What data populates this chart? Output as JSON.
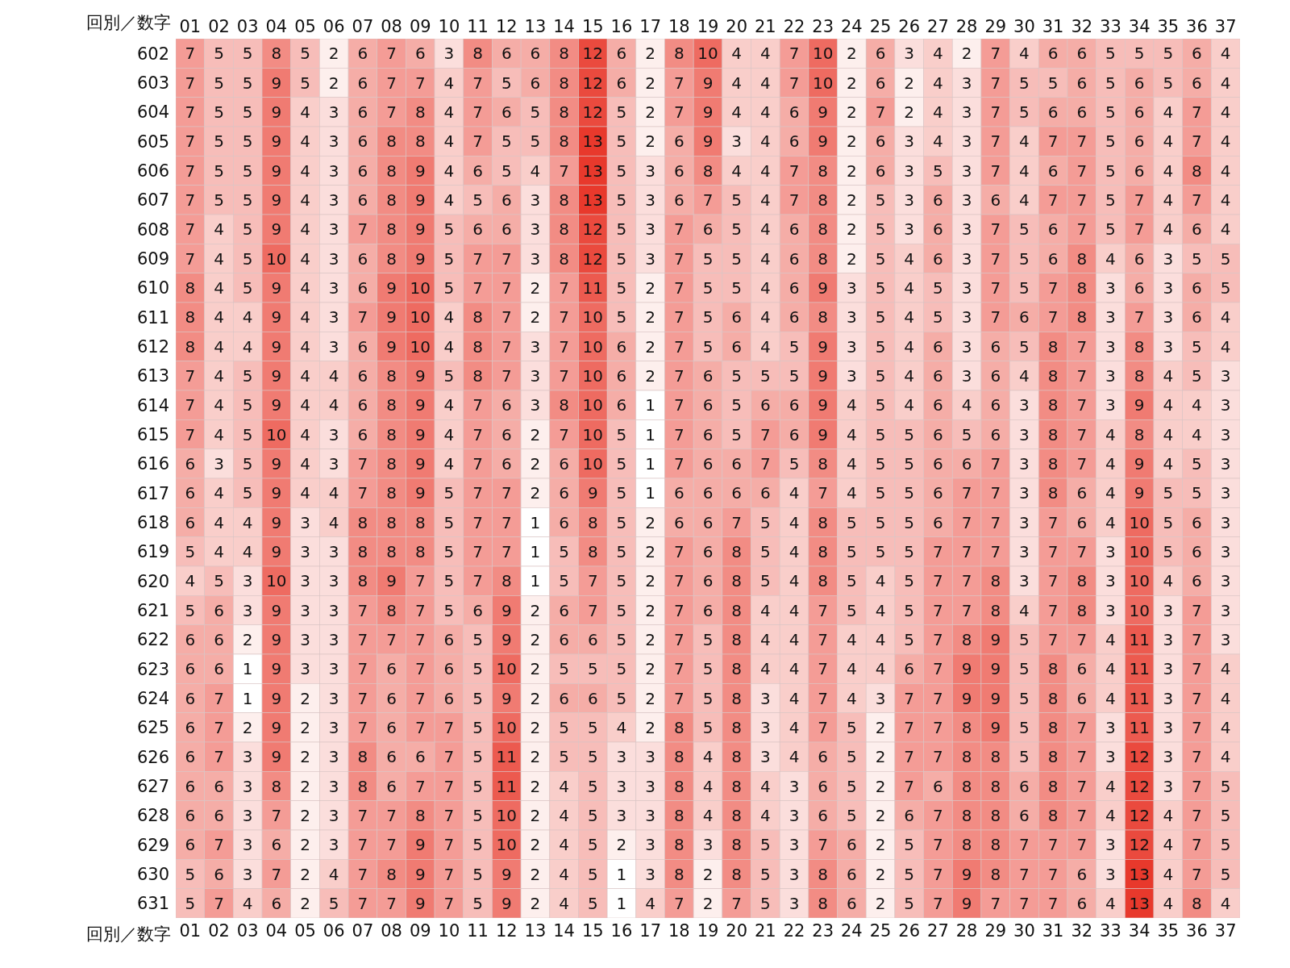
{
  "chart_data": {
    "type": "heatmap",
    "xlabel": "回別／数字",
    "color": "#e8392c",
    "data_labels": true,
    "categories": [
      "01",
      "02",
      "03",
      "04",
      "05",
      "06",
      "07",
      "08",
      "09",
      "10",
      "11",
      "12",
      "13",
      "14",
      "15",
      "16",
      "17",
      "18",
      "19",
      "20",
      "21",
      "22",
      "23",
      "24",
      "25",
      "26",
      "27",
      "28",
      "29",
      "30",
      "31",
      "32",
      "33",
      "34",
      "35",
      "36",
      "37"
    ],
    "y_categories": [
      "602",
      "603",
      "604",
      "605",
      "606",
      "607",
      "608",
      "609",
      "610",
      "611",
      "612",
      "613",
      "614",
      "615",
      "616",
      "617",
      "618",
      "619",
      "620",
      "621",
      "622",
      "623",
      "624",
      "625",
      "626",
      "627",
      "628",
      "629",
      "630",
      "631"
    ],
    "cells": [
      [
        7,
        5,
        5,
        8,
        5,
        2,
        6,
        7,
        6,
        3,
        8,
        6,
        6,
        8,
        12,
        6,
        2,
        8,
        10,
        4,
        4,
        7,
        10,
        2,
        6,
        3,
        4,
        2,
        7,
        4,
        6,
        6,
        5,
        5,
        5,
        6,
        4
      ],
      [
        7,
        5,
        5,
        9,
        5,
        2,
        6,
        7,
        7,
        4,
        7,
        5,
        6,
        8,
        12,
        6,
        2,
        7,
        9,
        4,
        4,
        7,
        10,
        2,
        6,
        2,
        4,
        3,
        7,
        5,
        5,
        6,
        5,
        6,
        5,
        6,
        4
      ],
      [
        7,
        5,
        5,
        9,
        4,
        3,
        6,
        7,
        8,
        4,
        7,
        6,
        5,
        8,
        12,
        5,
        2,
        7,
        9,
        4,
        4,
        6,
        9,
        2,
        7,
        2,
        4,
        3,
        7,
        5,
        6,
        6,
        5,
        6,
        4,
        7,
        4
      ],
      [
        7,
        5,
        5,
        9,
        4,
        3,
        6,
        8,
        8,
        4,
        7,
        5,
        5,
        8,
        13,
        5,
        2,
        6,
        9,
        3,
        4,
        6,
        9,
        2,
        6,
        3,
        4,
        3,
        7,
        4,
        7,
        7,
        5,
        6,
        4,
        7,
        4
      ],
      [
        7,
        5,
        5,
        9,
        4,
        3,
        6,
        8,
        9,
        4,
        6,
        5,
        4,
        7,
        13,
        5,
        3,
        6,
        8,
        4,
        4,
        7,
        8,
        2,
        6,
        3,
        5,
        3,
        7,
        4,
        6,
        7,
        5,
        6,
        4,
        8,
        4
      ],
      [
        7,
        5,
        5,
        9,
        4,
        3,
        6,
        8,
        9,
        4,
        5,
        6,
        3,
        8,
        13,
        5,
        3,
        6,
        7,
        5,
        4,
        7,
        8,
        2,
        5,
        3,
        6,
        3,
        6,
        4,
        7,
        7,
        5,
        7,
        4,
        7,
        4
      ],
      [
        7,
        4,
        5,
        9,
        4,
        3,
        7,
        8,
        9,
        5,
        6,
        6,
        3,
        8,
        12,
        5,
        3,
        7,
        6,
        5,
        4,
        6,
        8,
        2,
        5,
        3,
        6,
        3,
        7,
        5,
        6,
        7,
        5,
        7,
        4,
        6,
        4
      ],
      [
        7,
        4,
        5,
        10,
        4,
        3,
        6,
        8,
        9,
        5,
        7,
        7,
        3,
        8,
        12,
        5,
        3,
        7,
        5,
        5,
        4,
        6,
        8,
        2,
        5,
        4,
        6,
        3,
        7,
        5,
        6,
        8,
        4,
        6,
        3,
        5,
        5
      ],
      [
        8,
        4,
        5,
        9,
        4,
        3,
        6,
        9,
        10,
        5,
        7,
        7,
        2,
        7,
        11,
        5,
        2,
        7,
        5,
        5,
        4,
        6,
        9,
        3,
        5,
        4,
        5,
        3,
        7,
        5,
        7,
        8,
        3,
        6,
        3,
        6,
        5
      ],
      [
        8,
        4,
        4,
        9,
        4,
        3,
        7,
        9,
        10,
        4,
        8,
        7,
        2,
        7,
        10,
        5,
        2,
        7,
        5,
        6,
        4,
        6,
        8,
        3,
        5,
        4,
        5,
        3,
        7,
        6,
        7,
        8,
        3,
        7,
        3,
        6,
        4
      ],
      [
        8,
        4,
        4,
        9,
        4,
        3,
        6,
        9,
        10,
        4,
        8,
        7,
        3,
        7,
        10,
        6,
        2,
        7,
        5,
        6,
        4,
        5,
        9,
        3,
        5,
        4,
        6,
        3,
        6,
        5,
        8,
        7,
        3,
        8,
        3,
        5,
        4
      ],
      [
        7,
        4,
        5,
        9,
        4,
        4,
        6,
        8,
        9,
        5,
        8,
        7,
        3,
        7,
        10,
        6,
        2,
        7,
        6,
        5,
        5,
        5,
        9,
        3,
        5,
        4,
        6,
        3,
        6,
        4,
        8,
        7,
        3,
        8,
        4,
        5,
        3
      ],
      [
        7,
        4,
        5,
        9,
        4,
        4,
        6,
        8,
        9,
        4,
        7,
        6,
        3,
        8,
        10,
        6,
        1,
        7,
        6,
        5,
        6,
        6,
        9,
        4,
        5,
        4,
        6,
        4,
        6,
        3,
        8,
        7,
        3,
        9,
        4,
        4,
        3
      ],
      [
        7,
        4,
        5,
        10,
        4,
        3,
        6,
        8,
        9,
        4,
        7,
        6,
        2,
        7,
        10,
        5,
        1,
        7,
        6,
        5,
        7,
        6,
        9,
        4,
        5,
        5,
        6,
        5,
        6,
        3,
        8,
        7,
        4,
        8,
        4,
        4,
        3
      ],
      [
        6,
        3,
        5,
        9,
        4,
        3,
        7,
        8,
        9,
        4,
        7,
        6,
        2,
        6,
        10,
        5,
        1,
        7,
        6,
        6,
        7,
        5,
        8,
        4,
        5,
        5,
        6,
        6,
        7,
        3,
        8,
        7,
        4,
        9,
        4,
        5,
        3
      ],
      [
        6,
        4,
        5,
        9,
        4,
        4,
        7,
        8,
        9,
        5,
        7,
        7,
        2,
        6,
        9,
        5,
        1,
        6,
        6,
        6,
        6,
        4,
        7,
        4,
        5,
        5,
        6,
        7,
        7,
        3,
        8,
        6,
        4,
        9,
        5,
        5,
        3
      ],
      [
        6,
        4,
        4,
        9,
        3,
        4,
        8,
        8,
        8,
        5,
        7,
        7,
        1,
        6,
        8,
        5,
        2,
        6,
        6,
        7,
        5,
        4,
        8,
        5,
        5,
        5,
        6,
        7,
        7,
        3,
        7,
        6,
        4,
        10,
        5,
        6,
        3
      ],
      [
        5,
        4,
        4,
        9,
        3,
        3,
        8,
        8,
        8,
        5,
        7,
        7,
        1,
        5,
        8,
        5,
        2,
        7,
        6,
        8,
        5,
        4,
        8,
        5,
        5,
        5,
        7,
        7,
        7,
        3,
        7,
        7,
        3,
        10,
        5,
        6,
        3
      ],
      [
        4,
        5,
        3,
        10,
        3,
        3,
        8,
        9,
        7,
        5,
        7,
        8,
        1,
        5,
        7,
        5,
        2,
        7,
        6,
        8,
        5,
        4,
        8,
        5,
        4,
        5,
        7,
        7,
        8,
        3,
        7,
        8,
        3,
        10,
        4,
        6,
        3
      ],
      [
        5,
        6,
        3,
        9,
        3,
        3,
        7,
        8,
        7,
        5,
        6,
        9,
        2,
        6,
        7,
        5,
        2,
        7,
        6,
        8,
        4,
        4,
        7,
        5,
        4,
        5,
        7,
        7,
        8,
        4,
        7,
        8,
        3,
        10,
        3,
        7,
        3
      ],
      [
        6,
        6,
        2,
        9,
        3,
        3,
        7,
        7,
        7,
        6,
        5,
        9,
        2,
        6,
        6,
        5,
        2,
        7,
        5,
        8,
        4,
        4,
        7,
        4,
        4,
        5,
        7,
        8,
        9,
        5,
        7,
        7,
        4,
        11,
        3,
        7,
        3
      ],
      [
        6,
        6,
        1,
        9,
        3,
        3,
        7,
        6,
        7,
        6,
        5,
        10,
        2,
        5,
        5,
        5,
        2,
        7,
        5,
        8,
        4,
        4,
        7,
        4,
        4,
        6,
        7,
        9,
        9,
        5,
        8,
        6,
        4,
        11,
        3,
        7,
        4
      ],
      [
        6,
        7,
        1,
        9,
        2,
        3,
        7,
        6,
        7,
        6,
        5,
        9,
        2,
        6,
        6,
        5,
        2,
        7,
        5,
        8,
        3,
        4,
        7,
        4,
        3,
        7,
        7,
        9,
        9,
        5,
        8,
        6,
        4,
        11,
        3,
        7,
        4
      ],
      [
        6,
        7,
        2,
        9,
        2,
        3,
        7,
        6,
        7,
        7,
        5,
        10,
        2,
        5,
        5,
        4,
        2,
        8,
        5,
        8,
        3,
        4,
        7,
        5,
        2,
        7,
        7,
        8,
        9,
        5,
        8,
        7,
        3,
        11,
        3,
        7,
        4
      ],
      [
        6,
        7,
        3,
        9,
        2,
        3,
        8,
        6,
        6,
        7,
        5,
        11,
        2,
        5,
        5,
        3,
        3,
        8,
        4,
        8,
        3,
        4,
        6,
        5,
        2,
        7,
        7,
        8,
        8,
        5,
        8,
        7,
        3,
        12,
        3,
        7,
        4
      ],
      [
        6,
        6,
        3,
        8,
        2,
        3,
        8,
        6,
        7,
        7,
        5,
        11,
        2,
        4,
        5,
        3,
        3,
        8,
        4,
        8,
        4,
        3,
        6,
        5,
        2,
        7,
        6,
        8,
        8,
        6,
        8,
        7,
        4,
        12,
        3,
        7,
        5
      ],
      [
        6,
        6,
        3,
        7,
        2,
        3,
        7,
        7,
        8,
        7,
        5,
        10,
        2,
        4,
        5,
        3,
        3,
        8,
        4,
        8,
        4,
        3,
        6,
        5,
        2,
        6,
        7,
        8,
        8,
        6,
        8,
        7,
        4,
        12,
        4,
        7,
        5
      ],
      [
        6,
        7,
        3,
        6,
        2,
        3,
        7,
        7,
        9,
        7,
        5,
        10,
        2,
        4,
        5,
        2,
        3,
        8,
        3,
        8,
        5,
        3,
        7,
        6,
        2,
        5,
        7,
        8,
        8,
        7,
        7,
        7,
        3,
        12,
        4,
        7,
        5
      ],
      [
        5,
        6,
        3,
        7,
        2,
        4,
        7,
        8,
        9,
        7,
        5,
        9,
        2,
        4,
        5,
        1,
        3,
        8,
        2,
        8,
        5,
        3,
        8,
        6,
        2,
        5,
        7,
        9,
        8,
        7,
        7,
        6,
        3,
        13,
        4,
        7,
        5
      ],
      [
        5,
        7,
        4,
        6,
        2,
        5,
        7,
        7,
        9,
        7,
        5,
        9,
        2,
        4,
        5,
        1,
        4,
        7,
        2,
        7,
        5,
        3,
        8,
        6,
        2,
        5,
        7,
        9,
        7,
        7,
        7,
        6,
        4,
        13,
        4,
        8,
        4
      ]
    ]
  }
}
